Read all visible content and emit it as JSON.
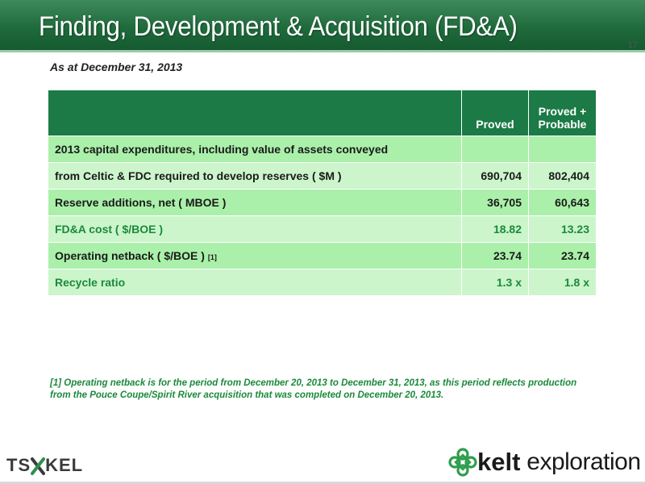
{
  "header": {
    "title": "Finding, Development & Acquisition (FD&A)",
    "page_number": "17"
  },
  "subtitle": "As at December 31, 2013",
  "table": {
    "columns": [
      "Proved",
      "Proved +",
      "Probable"
    ],
    "rows": [
      {
        "label": "2013 capital expenditures, including value of assets conveyed",
        "proved": "",
        "proved_probable": ""
      },
      {
        "label": "from Celtic & FDC required to develop reserves ( $M )",
        "proved": "690,704",
        "proved_probable": "802,404"
      },
      {
        "label": "Reserve additions, net ( MBOE )",
        "proved": "36,705",
        "proved_probable": "60,643"
      },
      {
        "label": "FD&A cost ( $/BOE )",
        "proved": "18.82",
        "proved_probable": "13.23"
      },
      {
        "label": "Operating netback ( $/BOE )",
        "ref": "[1]",
        "proved": "23.74",
        "proved_probable": "23.74"
      },
      {
        "label": "Recycle ratio",
        "proved": "1.3 x",
        "proved_probable": "1.8 x"
      }
    ]
  },
  "footnote": "[1] Operating netback is for the period from December 20, 2013 to December 31, 2013, as this period reflects production from the Pouce Coupe/Spirit River acquisition that was completed on December 20, 2013.",
  "logos": {
    "tsx_left": "TS",
    "tsx_right": "KEL",
    "company_bold": "kelt",
    "company_rest": " exploration"
  },
  "colors": {
    "header_green": "#1f6b3c",
    "table_header": "#1b7a46",
    "row_light": "#ccf5cc",
    "row_mid": "#aaf0aa",
    "accent_text": "#1a8a3a"
  }
}
